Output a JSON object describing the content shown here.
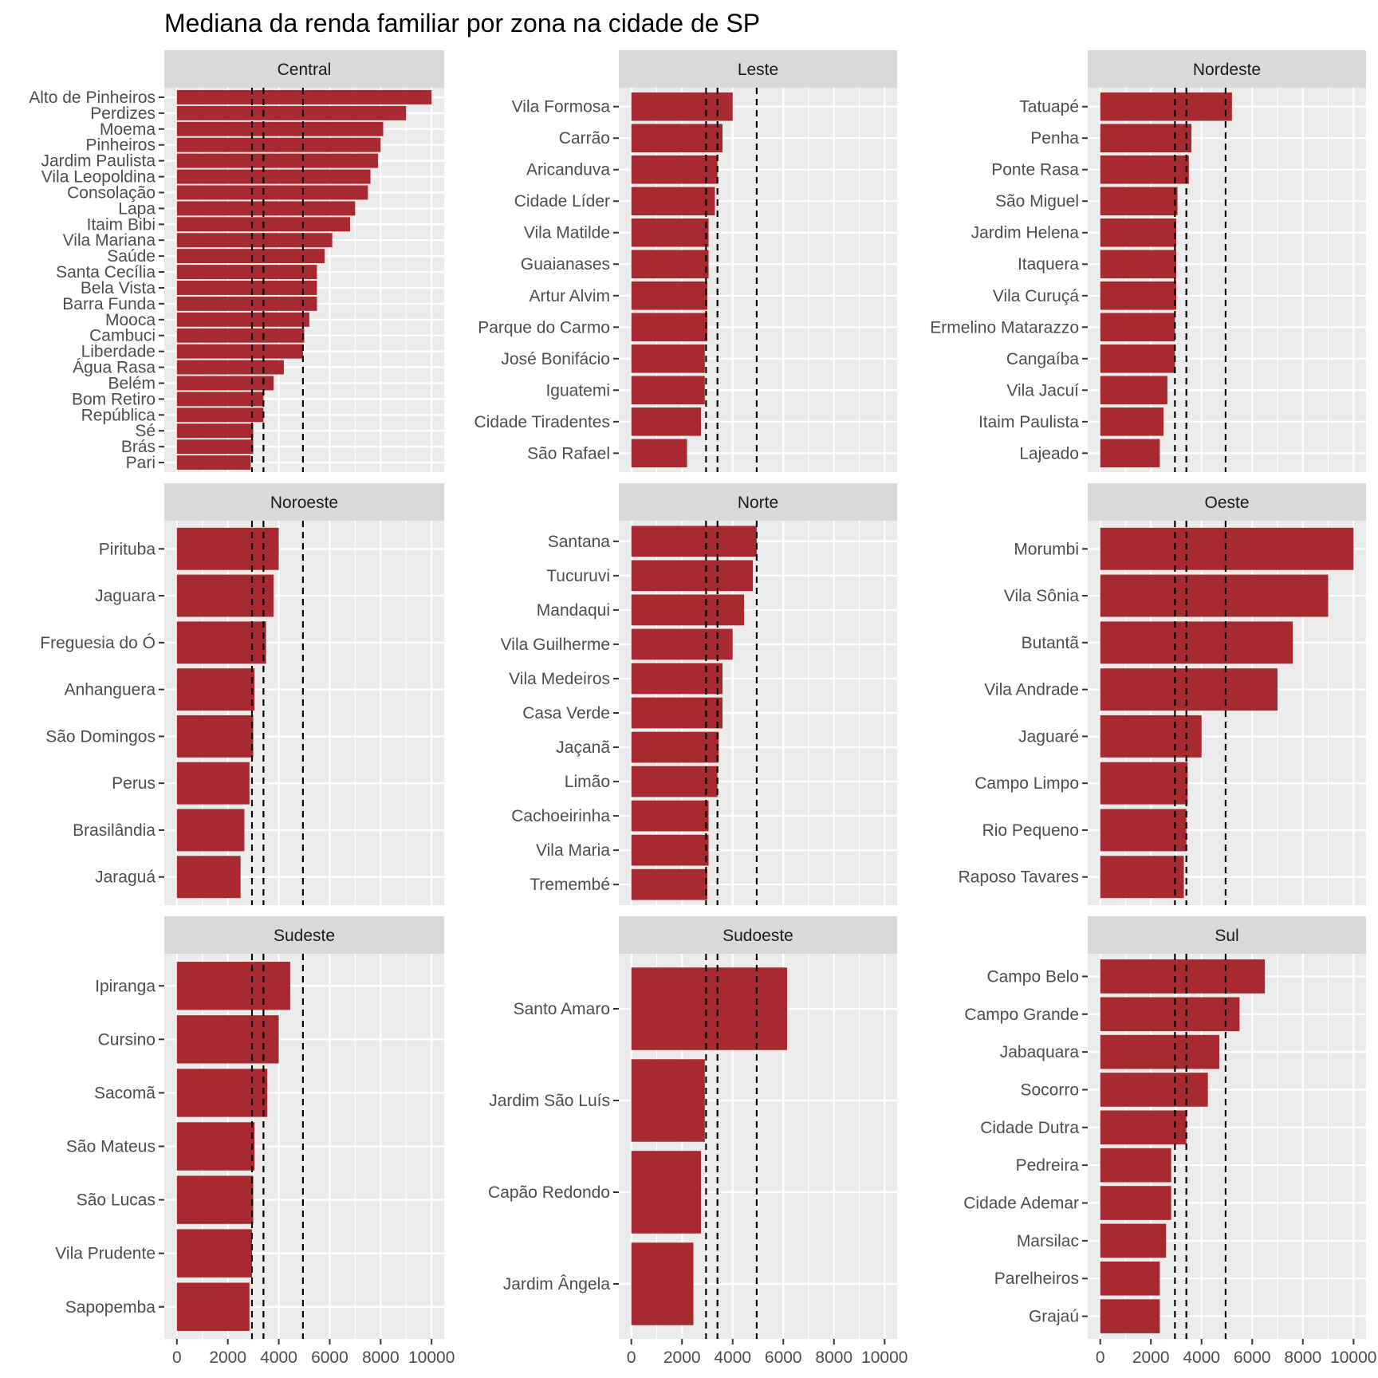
{
  "chart_data": {
    "type": "bar",
    "orientation": "horizontal",
    "title": "Mediana da renda familiar por zona na cidade de SP",
    "xlabel": "",
    "ylabel": "",
    "xlim": [
      0,
      10000
    ],
    "xticks": [
      0,
      2000,
      4000,
      6000,
      8000,
      10000
    ],
    "grid": true,
    "bar_color": "#a62a30",
    "reference_lines": [
      2950,
      3400,
      4950
    ],
    "facets": [
      {
        "name": "Central",
        "categories": [
          "Alto de Pinheiros",
          "Perdizes",
          "Moema",
          "Pinheiros",
          "Jardim Paulista",
          "Vila Leopoldina",
          "Consolação",
          "Lapa",
          "Itaim Bibi",
          "Vila Mariana",
          "Saúde",
          "Santa Cecília",
          "Bela Vista",
          "Barra Funda",
          "Mooca",
          "Cambuci",
          "Liberdade",
          "Água Rasa",
          "Belém",
          "Bom Retiro",
          "República",
          "Sé",
          "Brás",
          "Pari"
        ],
        "values": [
          10000,
          9000,
          8100,
          8000,
          7900,
          7600,
          7500,
          7000,
          6800,
          6100,
          5800,
          5500,
          5500,
          5500,
          5200,
          5000,
          4950,
          4200,
          3800,
          3400,
          3400,
          3000,
          3000,
          2900
        ]
      },
      {
        "name": "Leste",
        "categories": [
          "Vila Formosa",
          "Carrão",
          "Aricanduva",
          "Cidade Líder",
          "Vila Matilde",
          "Guaianases",
          "Artur Alvim",
          "Parque do Carmo",
          "José Bonifácio",
          "Iguatemi",
          "Cidade Tiradentes",
          "São Rafael"
        ],
        "values": [
          4000,
          3600,
          3400,
          3300,
          3050,
          3050,
          3000,
          3000,
          2900,
          2900,
          2750,
          2200
        ]
      },
      {
        "name": "Nordeste",
        "categories": [
          "Tatuapé",
          "Penha",
          "Ponte Rasa",
          "São Miguel",
          "Jardim Helena",
          "Itaquera",
          "Vila Curuçá",
          "Ermelino Matarazzo",
          "Cangaíba",
          "Vila Jacuí",
          "Itaim Paulista",
          "Lajeado"
        ],
        "values": [
          5200,
          3600,
          3500,
          3050,
          3000,
          3000,
          3000,
          2950,
          2950,
          2650,
          2500,
          2350
        ]
      },
      {
        "name": "Noroeste",
        "categories": [
          "Pirituba",
          "Jaguara",
          "Freguesia do Ó",
          "Anhanguera",
          "São Domingos",
          "Perus",
          "Brasilândia",
          "Jaraguá"
        ],
        "values": [
          4000,
          3800,
          3500,
          3050,
          3000,
          2850,
          2650,
          2500
        ]
      },
      {
        "name": "Norte",
        "categories": [
          "Santana",
          "Tucuruvi",
          "Mandaqui",
          "Vila Guilherme",
          "Vila Medeiros",
          "Casa Verde",
          "Jaçanã",
          "Limão",
          "Cachoeirinha",
          "Vila Maria",
          "Tremembé"
        ],
        "values": [
          4950,
          4800,
          4450,
          4000,
          3600,
          3600,
          3450,
          3400,
          3050,
          3050,
          3000
        ]
      },
      {
        "name": "Oeste",
        "categories": [
          "Morumbi",
          "Vila Sônia",
          "Butantã",
          "Vila Andrade",
          "Jaguaré",
          "Campo Limpo",
          "Rio Pequeno",
          "Raposo Tavares"
        ],
        "values": [
          10000,
          9000,
          7600,
          7000,
          4000,
          3450,
          3400,
          3300
        ]
      },
      {
        "name": "Sudeste",
        "categories": [
          "Ipiranga",
          "Cursino",
          "Sacomã",
          "São Mateus",
          "São Lucas",
          "Vila Prudente",
          "Sapopemba"
        ],
        "values": [
          4450,
          4000,
          3550,
          3050,
          3000,
          2950,
          2850
        ]
      },
      {
        "name": "Sudoeste",
        "categories": [
          "Santo Amaro",
          "Jardim São Luís",
          "Capão Redondo",
          "Jardim Ângela"
        ],
        "values": [
          6150,
          2900,
          2750,
          2450
        ]
      },
      {
        "name": "Sul",
        "categories": [
          "Campo Belo",
          "Campo Grande",
          "Jabaquara",
          "Socorro",
          "Cidade Dutra",
          "Pedreira",
          "Cidade Ademar",
          "Marsilac",
          "Parelheiros",
          "Grajaú"
        ],
        "values": [
          6500,
          5500,
          4700,
          4250,
          3400,
          2800,
          2800,
          2600,
          2350,
          2350
        ]
      }
    ]
  }
}
